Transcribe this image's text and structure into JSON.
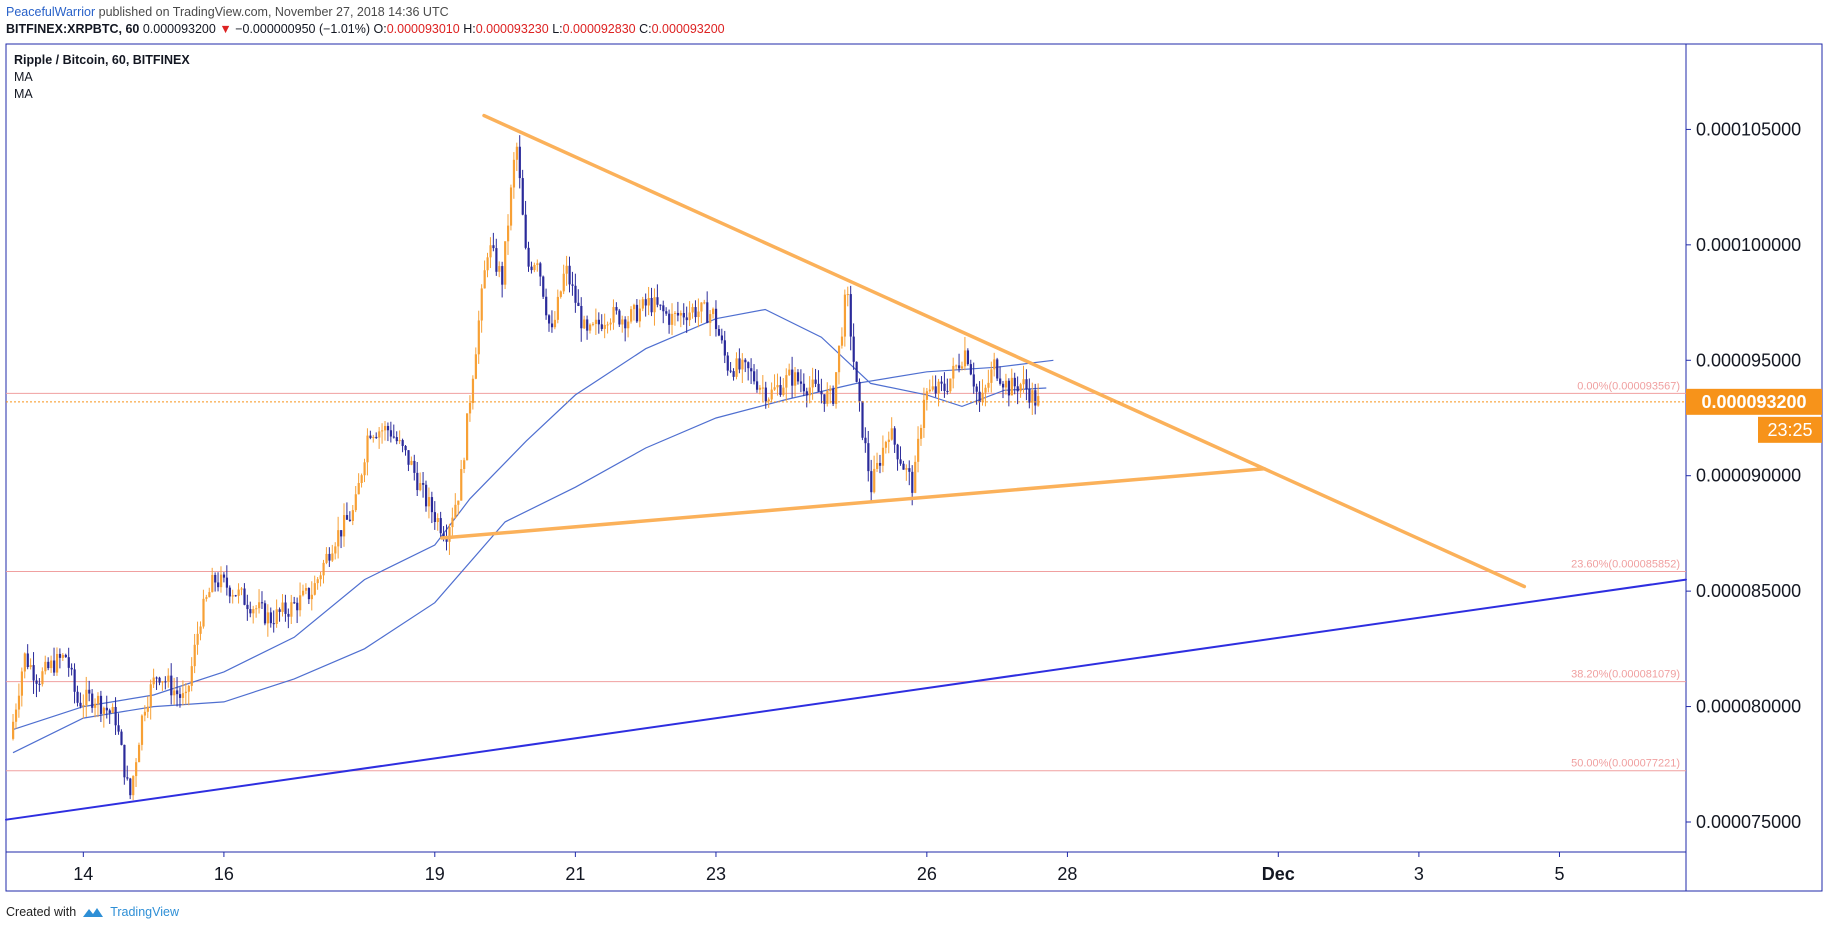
{
  "header": {
    "author": "PeacefulWarrior",
    "published": "published on TradingView.com, November 27, 2018 14:36 UTC"
  },
  "ohlc": {
    "symbol": "BITFINEX:XRPBTC, 60",
    "last": "0.000093200",
    "change": "−0.000000950 (−1.01%)",
    "o_label": "O:",
    "o": "0.000093010",
    "h_label": "H:",
    "h": "0.000093230",
    "l_label": "L:",
    "l": "0.000092830",
    "c_label": "C:",
    "c": "0.000093200"
  },
  "legend": {
    "title": "Ripple / Bitcoin, 60, BITFINEX",
    "ma1": "MA",
    "ma2": "MA"
  },
  "price_badge": "0.000093200",
  "time_badge": "23:25",
  "footer": {
    "created": "Created with",
    "brand": "TradingView"
  },
  "colors": {
    "up": "#f7a035",
    "down": "#2a2a9a",
    "trend": "#fbb15a",
    "support": "#2e2ee0",
    "ma": "#4f6fd0",
    "fib": "#f0a0a0",
    "price": "#f7931a"
  },
  "chart_data": {
    "type": "candlestick",
    "title": "Ripple / Bitcoin, 60, BITFINEX",
    "symbol": "BITFINEX:XRPBTC",
    "interval": "60",
    "ylim": [
      7.37e-05,
      0.0001087
    ],
    "y_ticks": [
      7.5e-05,
      8e-05,
      8.5e-05,
      9e-05,
      9.5e-05,
      0.0001,
      0.000105
    ],
    "y_tick_labels": [
      "0.000075000",
      "0.000080000",
      "0.000085000",
      "0.000090000",
      "0.000095000",
      "0.000100000",
      "0.000105000"
    ],
    "x_range_days": [
      12.9,
      36.8
    ],
    "x_ticks": [
      {
        "day": 14,
        "label": "14"
      },
      {
        "day": 16,
        "label": "16"
      },
      {
        "day": 19,
        "label": "19"
      },
      {
        "day": 21,
        "label": "21"
      },
      {
        "day": 23,
        "label": "23"
      },
      {
        "day": 26,
        "label": "26"
      },
      {
        "day": 28,
        "label": "28"
      },
      {
        "day": 31,
        "label": "Dec"
      },
      {
        "day": 33,
        "label": "3"
      },
      {
        "day": 35,
        "label": "5"
      }
    ],
    "last_price": 9.32e-05,
    "price_path": [
      [
        13.0,
        7.86e-05
      ],
      [
        13.2,
        8.22e-05
      ],
      [
        13.4,
        8.12e-05
      ],
      [
        13.6,
        8.18e-05
      ],
      [
        13.8,
        8.22e-05
      ],
      [
        13.95,
        8.02e-05
      ],
      [
        14.2,
        8.04e-05
      ],
      [
        14.5,
        7.95e-05
      ],
      [
        14.7,
        7.6e-05
      ],
      [
        14.9,
        8e-05
      ],
      [
        15.1,
        8.15e-05
      ],
      [
        15.3,
        8.08e-05
      ],
      [
        15.5,
        8.02e-05
      ],
      [
        15.7,
        8.38e-05
      ],
      [
        15.9,
        8.55e-05
      ],
      [
        16.1,
        8.52e-05
      ],
      [
        16.4,
        8.45e-05
      ],
      [
        16.7,
        8.38e-05
      ],
      [
        17.0,
        8.43e-05
      ],
      [
        17.3,
        8.5e-05
      ],
      [
        17.6,
        8.72e-05
      ],
      [
        17.9,
        8.85e-05
      ],
      [
        18.1,
        9.2e-05
      ],
      [
        18.4,
        9.2e-05
      ],
      [
        18.7,
        9.05e-05
      ],
      [
        18.9,
        8.9e-05
      ],
      [
        19.2,
        8.75e-05
      ],
      [
        19.4,
        8.95e-05
      ],
      [
        19.6,
        9.5e-05
      ],
      [
        19.8,
        0.0001
      ],
      [
        20.0,
        9.85e-05
      ],
      [
        20.2,
        0.0001045
      ],
      [
        20.35,
        9.9e-05
      ],
      [
        20.5,
        9.95e-05
      ],
      [
        20.7,
        9.6e-05
      ],
      [
        20.9,
        9.9e-05
      ],
      [
        21.2,
        9.6e-05
      ],
      [
        21.5,
        9.7e-05
      ],
      [
        21.8,
        9.68e-05
      ],
      [
        22.1,
        9.75e-05
      ],
      [
        22.4,
        9.68e-05
      ],
      [
        22.7,
        9.72e-05
      ],
      [
        23.0,
        9.7e-05
      ],
      [
        23.2,
        9.48e-05
      ],
      [
        23.5,
        9.45e-05
      ],
      [
        23.8,
        9.35e-05
      ],
      [
        24.1,
        9.43e-05
      ],
      [
        24.4,
        9.38e-05
      ],
      [
        24.7,
        9.33e-05
      ],
      [
        24.9,
        9.8e-05
      ],
      [
        25.05,
        9.35e-05
      ],
      [
        25.25,
        8.95e-05
      ],
      [
        25.5,
        9.2e-05
      ],
      [
        25.7,
        9.05e-05
      ],
      [
        25.85,
        8.95e-05
      ],
      [
        26.0,
        9.35e-05
      ],
      [
        26.3,
        9.38e-05
      ],
      [
        26.6,
        9.55e-05
      ],
      [
        26.8,
        9.3e-05
      ],
      [
        27.0,
        9.48e-05
      ],
      [
        27.2,
        9.38e-05
      ],
      [
        27.4,
        9.4e-05
      ],
      [
        27.6,
        9.32e-05
      ]
    ],
    "moving_averages": [
      {
        "name": "MA",
        "points": [
          [
            13.0,
            7.9e-05
          ],
          [
            14.0,
            8e-05
          ],
          [
            15.0,
            8.05e-05
          ],
          [
            16.0,
            8.15e-05
          ],
          [
            17.0,
            8.3e-05
          ],
          [
            18.0,
            8.55e-05
          ],
          [
            19.0,
            8.7e-05
          ],
          [
            19.5,
            8.9e-05
          ],
          [
            20.3,
            9.15e-05
          ],
          [
            21.0,
            9.35e-05
          ],
          [
            22.0,
            9.55e-05
          ],
          [
            23.0,
            9.68e-05
          ],
          [
            23.7,
            9.72e-05
          ],
          [
            24.5,
            9.6e-05
          ],
          [
            25.2,
            9.4e-05
          ],
          [
            26.0,
            9.35e-05
          ],
          [
            26.5,
            9.3e-05
          ],
          [
            27.1,
            9.37e-05
          ],
          [
            27.7,
            9.38e-05
          ]
        ]
      },
      {
        "name": "MA",
        "points": [
          [
            13.0,
            7.8e-05
          ],
          [
            14.0,
            7.95e-05
          ],
          [
            15.0,
            8e-05
          ],
          [
            16.0,
            8.02e-05
          ],
          [
            17.0,
            8.12e-05
          ],
          [
            18.0,
            8.25e-05
          ],
          [
            19.0,
            8.45e-05
          ],
          [
            20.0,
            8.8e-05
          ],
          [
            21.0,
            8.95e-05
          ],
          [
            22.0,
            9.12e-05
          ],
          [
            23.0,
            9.25e-05
          ],
          [
            24.0,
            9.33e-05
          ],
          [
            25.0,
            9.4e-05
          ],
          [
            26.0,
            9.45e-05
          ],
          [
            27.0,
            9.47e-05
          ],
          [
            27.8,
            9.5e-05
          ]
        ]
      }
    ],
    "trendlines": [
      {
        "name": "descending resistance",
        "from": [
          19.7,
          0.0001056
        ],
        "to": [
          34.5,
          8.52e-05
        ]
      },
      {
        "name": "ascending support",
        "from": [
          19.1,
          8.73e-05
        ],
        "to": [
          30.8,
          9.03e-05
        ]
      },
      {
        "name": "long-term support",
        "from": [
          12.9,
          7.51e-05
        ],
        "to": [
          36.8,
          8.55e-05
        ]
      }
    ],
    "fib_levels": [
      {
        "label": "0.00%(0.000093567)",
        "price": 9.3567e-05
      },
      {
        "label": "23.60%(0.000085852)",
        "price": 8.5852e-05
      },
      {
        "label": "38.20%(0.000081079)",
        "price": 8.1079e-05
      },
      {
        "label": "50.00%(0.000077221)",
        "price": 7.7221e-05
      }
    ]
  }
}
